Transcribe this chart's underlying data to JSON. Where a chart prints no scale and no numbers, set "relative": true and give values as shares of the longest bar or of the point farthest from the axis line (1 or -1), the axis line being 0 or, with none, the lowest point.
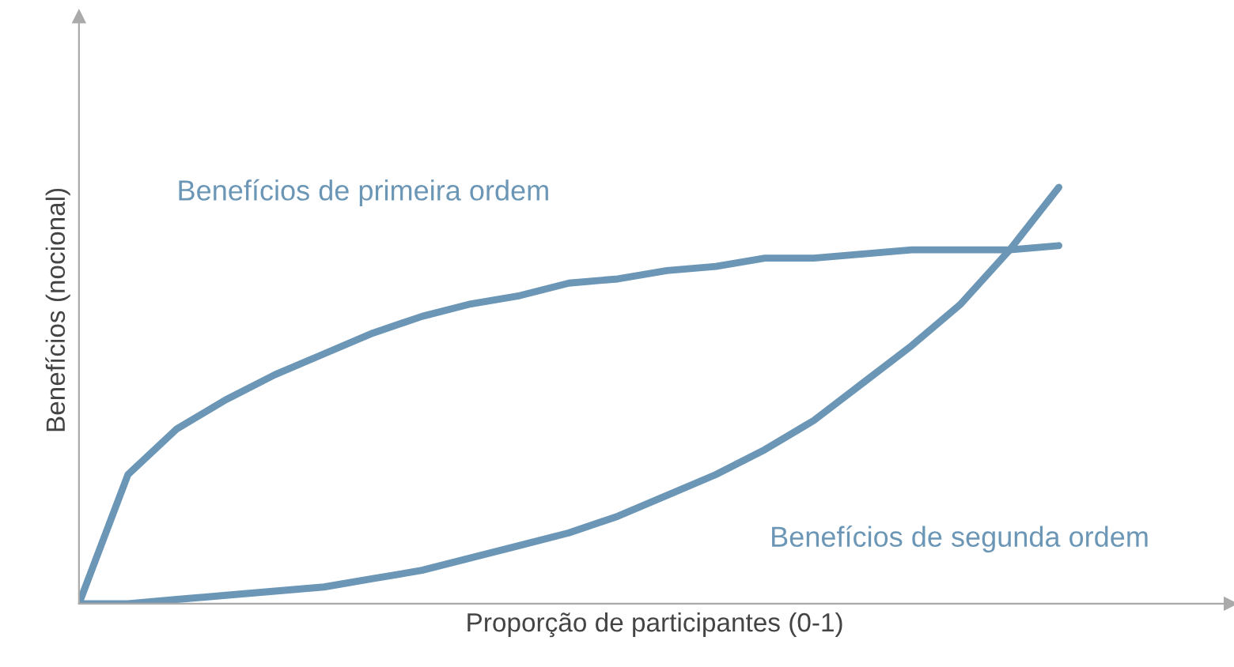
{
  "chart_data": {
    "type": "line",
    "relative": true,
    "xlabel": "Proporção de participantes (0-1)",
    "ylabel": "Benefícios (nocional)",
    "categories": [
      null,
      null,
      null,
      null,
      null,
      null,
      null,
      null,
      null,
      null,
      null,
      null,
      null,
      null,
      null,
      null,
      null,
      null,
      null,
      null,
      null
    ],
    "marker": "none",
    "line_style": "solid",
    "series": [
      {
        "name": "Benefícios de primeira ordem",
        "color": "#6b96b6",
        "values": [
          0,
          0.31,
          0.42,
          0.49,
          0.55,
          0.6,
          0.65,
          0.69,
          0.72,
          0.74,
          0.77,
          0.78,
          0.8,
          0.81,
          0.83,
          0.83,
          0.84,
          0.85,
          0.85,
          0.85,
          0.86
        ]
      },
      {
        "name": "Benefícios de segunda ordem",
        "color": "#6b96b6",
        "values": [
          0,
          0.0,
          0.01,
          0.02,
          0.03,
          0.04,
          0.06,
          0.08,
          0.11,
          0.14,
          0.17,
          0.21,
          0.26,
          0.31,
          0.37,
          0.44,
          0.53,
          0.62,
          0.72,
          0.85,
          1
        ]
      }
    ]
  }
}
